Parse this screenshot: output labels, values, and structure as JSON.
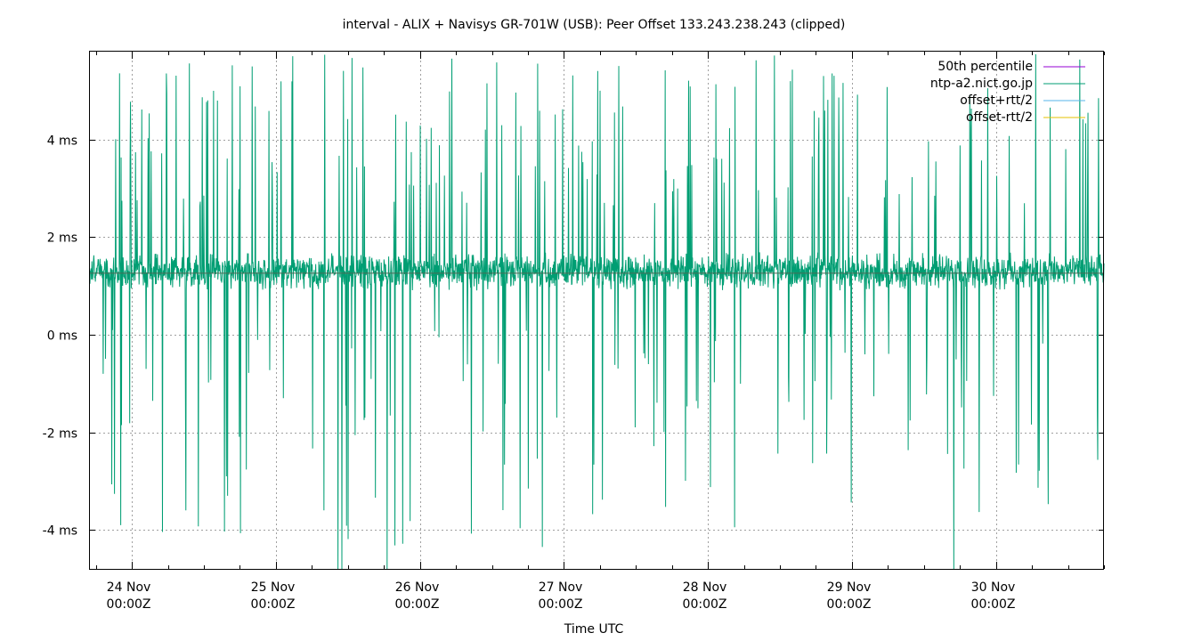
{
  "chart_data": {
    "type": "line",
    "title": "interval - ALIX + Navisys GR-701W (USB): Peer Offset 133.243.238.243 (clipped)",
    "xlabel": "Time UTC",
    "ylabel": "",
    "ylim": [
      -4.8,
      5.8
    ],
    "xlim": [
      "2024-11-23T17:00Z",
      "2024-11-30T18:00Z"
    ],
    "yticks": [
      {
        "value": 4,
        "label": "4 ms"
      },
      {
        "value": 2,
        "label": "2 ms"
      },
      {
        "value": 0,
        "label": "0 ms"
      },
      {
        "value": -2,
        "label": "-2 ms"
      },
      {
        "value": -4,
        "label": "-4 ms"
      }
    ],
    "xticks": [
      {
        "value": "2024-11-24T00:00Z",
        "line1": "24 Nov",
        "line2": "00:00Z"
      },
      {
        "value": "2024-11-25T00:00Z",
        "line1": "25 Nov",
        "line2": "00:00Z"
      },
      {
        "value": "2024-11-26T00:00Z",
        "line1": "26 Nov",
        "line2": "00:00Z"
      },
      {
        "value": "2024-11-27T00:00Z",
        "line1": "27 Nov",
        "line2": "00:00Z"
      },
      {
        "value": "2024-11-28T00:00Z",
        "line1": "28 Nov",
        "line2": "00:00Z"
      },
      {
        "value": "2024-11-29T00:00Z",
        "line1": "29 Nov",
        "line2": "00:00Z"
      },
      {
        "value": "2024-11-30T00:00Z",
        "line1": "30 Nov",
        "line2": "00:00Z"
      }
    ],
    "grid": true,
    "legend_position": "top-right",
    "series": [
      {
        "name": "50th percentile",
        "color": "#9400d3",
        "kind": "hline",
        "value": 1.26
      },
      {
        "name": "ntp-a2.nict.go.jp",
        "color": "#009e73",
        "kind": "offset",
        "baseline_ms": 1.3,
        "typical_noise_ms": 0.25,
        "spike_low_ms": -3.0,
        "spike_high_ms": 5.8,
        "notable_extremes": [
          {
            "t": "2024-11-25T10:20Z",
            "y": -4.8
          },
          {
            "t": "2024-11-25T11:00Z",
            "y": -4.8
          },
          {
            "t": "2024-11-25T18:30Z",
            "y": -4.8
          },
          {
            "t": "2024-11-29T17:00Z",
            "y": -4.8
          },
          {
            "t": "2024-11-24T09:00Z",
            "y": -3.6
          },
          {
            "t": "2024-11-25T08:00Z",
            "y": -3.6
          }
        ]
      },
      {
        "name": "offset+rtt/2",
        "color": "#56b4e9",
        "kind": "offset_plus"
      },
      {
        "name": "offset-rtt/2",
        "color": "#e6c000",
        "kind": "offset_minus"
      }
    ]
  }
}
